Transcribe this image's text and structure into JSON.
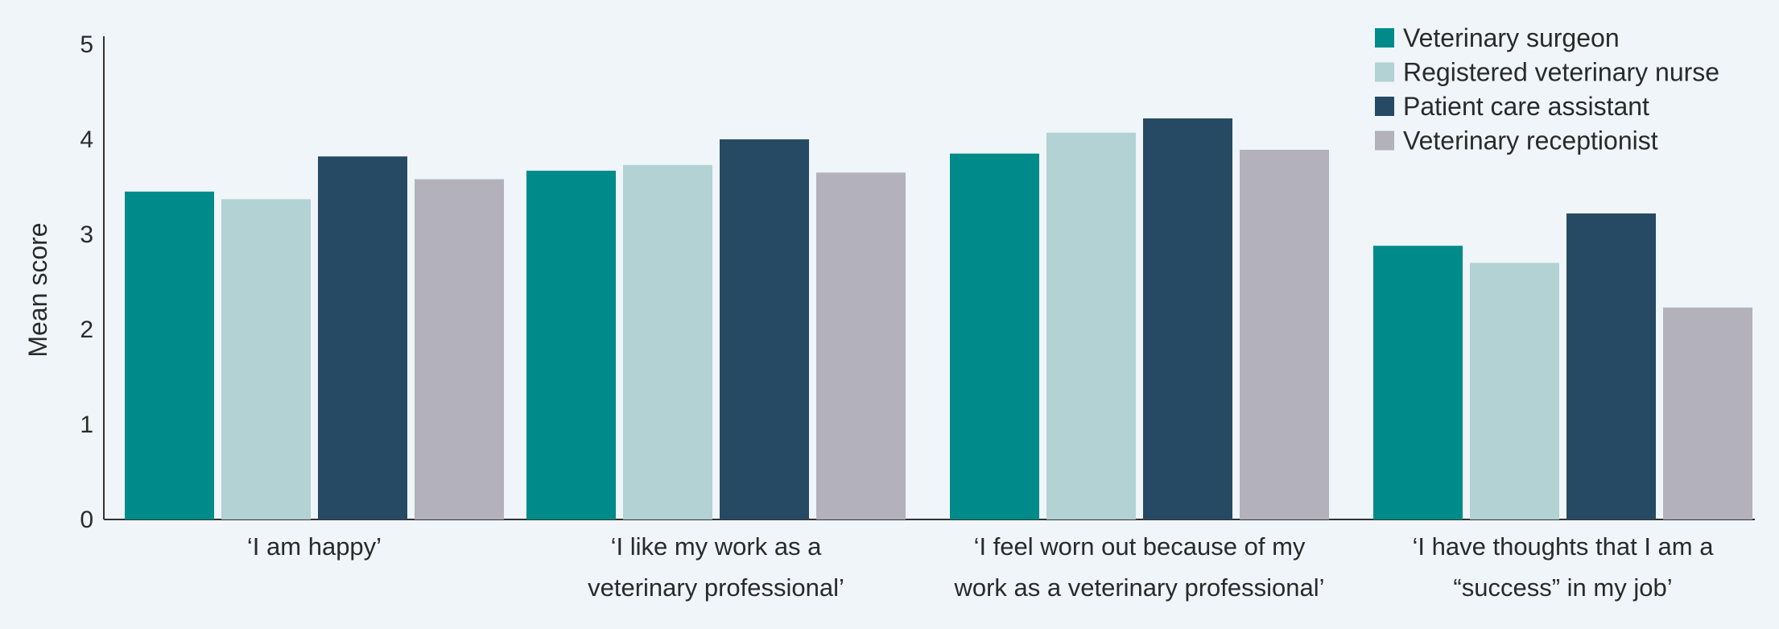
{
  "chart_data": {
    "type": "bar",
    "ylabel": "Mean score",
    "xlabel": "",
    "ylim": [
      0,
      5
    ],
    "yticks": [
      "0",
      "1",
      "2",
      "3",
      "4",
      "5"
    ],
    "legend_position": "top-right",
    "categories": [
      [
        "‘I am happy’"
      ],
      [
        "‘I like my work as a",
        "veterinary professional’"
      ],
      [
        "‘I feel worn out because of my",
        "work as a veterinary professional’"
      ],
      [
        "‘I have thoughts that I am a",
        "“success” in my job’"
      ]
    ],
    "series": [
      {
        "name": "Veterinary surgeon",
        "color": "#008b8b",
        "values": [
          3.45,
          3.67,
          3.85,
          2.88
        ]
      },
      {
        "name": "Registered veterinary nurse",
        "color": "#b2d2d4",
        "values": [
          3.37,
          3.73,
          4.07,
          2.7
        ]
      },
      {
        "name": "Patient care assistant",
        "color": "#264a63",
        "values": [
          3.82,
          4.0,
          4.22,
          3.22
        ]
      },
      {
        "name": "Veterinary receptionist",
        "color": "#b2b1bc",
        "values": [
          3.58,
          3.65,
          3.89,
          2.23
        ]
      }
    ],
    "grid": false
  }
}
